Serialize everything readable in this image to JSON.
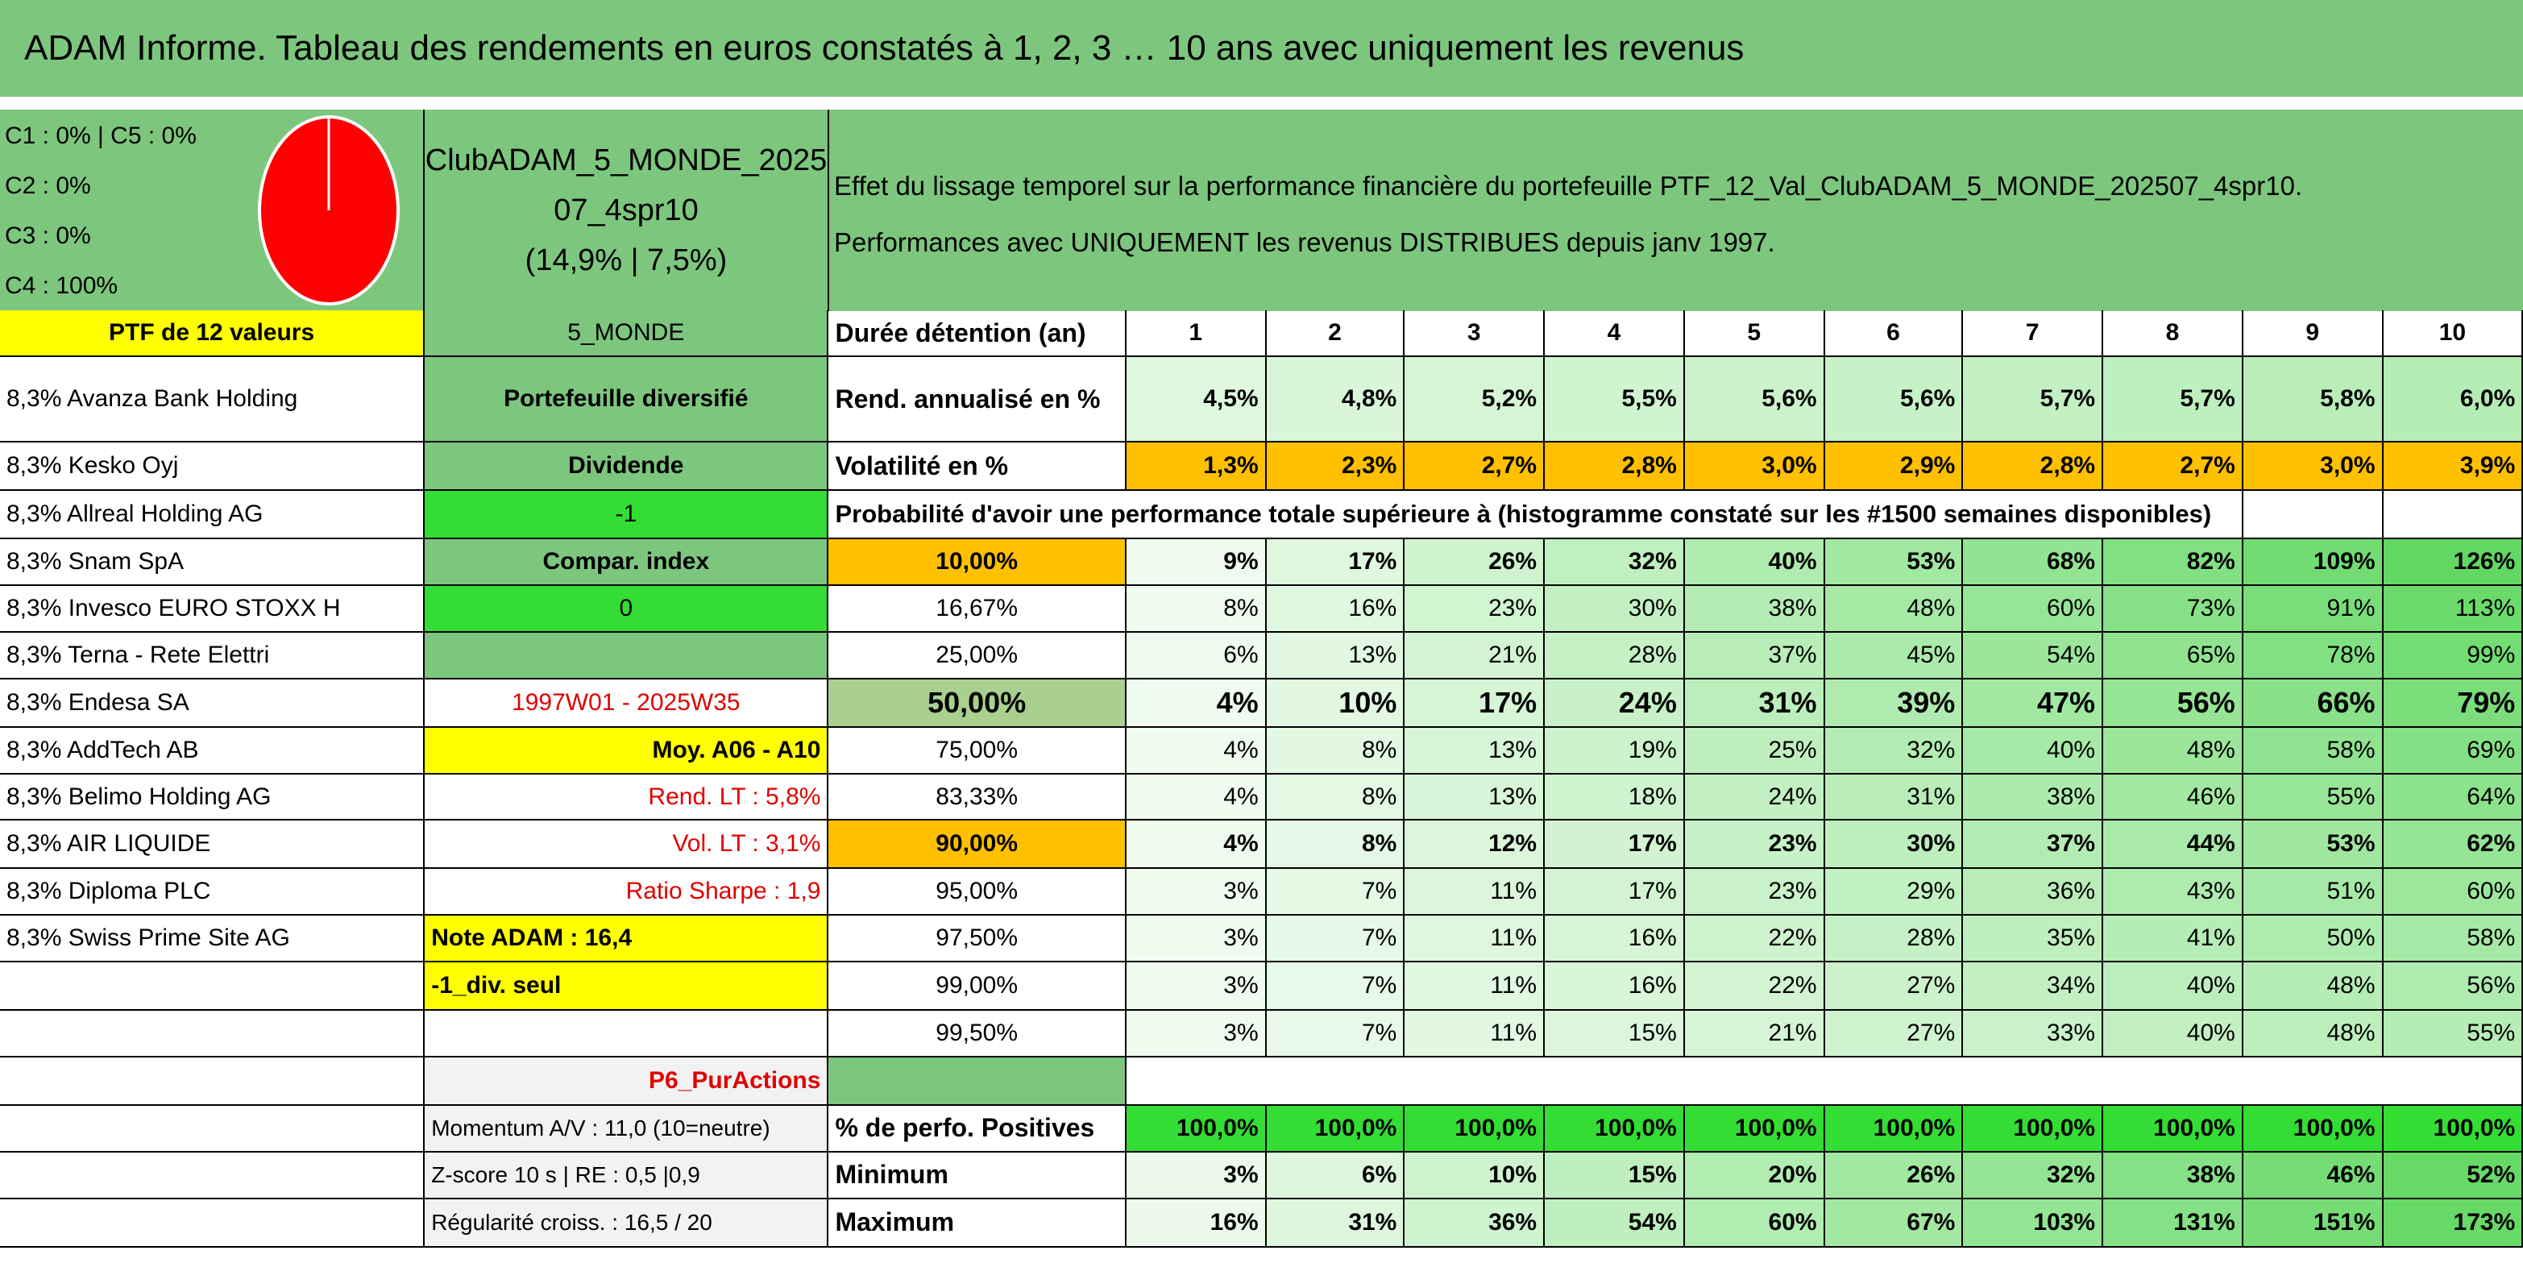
{
  "title": "ADAM Informe. Tableau des rendements en euros constatés à 1, 2, 3 … 10 ans avec uniquement les revenus",
  "allocation": [
    "C1 : 0% | C5 : 0%",
    "C2 : 0%",
    "C3 : 0%",
    "C4 : 100%"
  ],
  "portfolio": {
    "name_line1": "ClubADAM_5_MONDE_2025",
    "name_line2": "07_4spr10",
    "stats": "(14,9% | 7,5%)"
  },
  "description": [
    "Effet du lissage temporel sur la performance financière du portefeuille PTF_12_Val_ClubADAM_5_MONDE_202507_4spr10.",
    "Performances avec UNIQUEMENT les revenus DISTRIBUES depuis janv 1997."
  ],
  "rows": [
    {
      "left": "PTF de 12 valeurs",
      "middle": "5_MONDE",
      "label": "Durée détention (an)",
      "values": [
        "1",
        "2",
        "3",
        "4",
        "5",
        "6",
        "7",
        "8",
        "9",
        "10"
      ]
    },
    {
      "left": "8,3% Avanza Bank Holding",
      "middle": "Portefeuille diversifié",
      "label": "Rend. annualisé en %",
      "values": [
        "4,5%",
        "4,8%",
        "5,2%",
        "5,5%",
        "5,6%",
        "5,6%",
        "5,7%",
        "5,7%",
        "5,8%",
        "6,0%"
      ]
    },
    {
      "left": "8,3% Kesko Oyj",
      "middle": "Dividende",
      "label": "Volatilité en %",
      "values": [
        "1,3%",
        "2,3%",
        "2,7%",
        "2,8%",
        "3,0%",
        "2,9%",
        "2,8%",
        "2,7%",
        "3,0%",
        "3,9%"
      ]
    },
    {
      "left": "8,3% Allreal Holding AG",
      "middle": "-1",
      "label": "Probabilité d'avoir une performance totale supérieure à (histogramme constaté sur les #1500 semaines disponibles)",
      "values": null
    },
    {
      "left": "8,3% Snam SpA",
      "middle": "Compar. index",
      "label": "10,00%",
      "values": [
        "9%",
        "17%",
        "26%",
        "32%",
        "40%",
        "53%",
        "68%",
        "82%",
        "109%",
        "126%"
      ]
    },
    {
      "left": "8,3% Invesco EURO STOXX H",
      "middle": "0",
      "label": "16,67%",
      "values": [
        "8%",
        "16%",
        "23%",
        "30%",
        "38%",
        "48%",
        "60%",
        "73%",
        "91%",
        "113%"
      ]
    },
    {
      "left": "8,3% Terna - Rete Elettri",
      "middle": null,
      "label": "25,00%",
      "values": [
        "6%",
        "13%",
        "21%",
        "28%",
        "37%",
        "45%",
        "54%",
        "65%",
        "78%",
        "99%"
      ]
    },
    {
      "left": "8,3% Endesa SA",
      "middle": "1997W01 - 2025W35",
      "label": "50,00%",
      "values": [
        "4%",
        "10%",
        "17%",
        "24%",
        "31%",
        "39%",
        "47%",
        "56%",
        "66%",
        "79%"
      ]
    },
    {
      "left": "8,3% AddTech AB",
      "middle": "Moy. A06 - A10",
      "label": "75,00%",
      "values": [
        "4%",
        "8%",
        "13%",
        "19%",
        "25%",
        "32%",
        "40%",
        "48%",
        "58%",
        "69%"
      ]
    },
    {
      "left": "8,3% Belimo Holding AG",
      "middle": "Rend. LT : 5,8%",
      "label": "83,33%",
      "values": [
        "4%",
        "8%",
        "13%",
        "18%",
        "24%",
        "31%",
        "38%",
        "46%",
        "55%",
        "64%"
      ]
    },
    {
      "left": "8,3% AIR LIQUIDE",
      "middle": "Vol. LT : 3,1%",
      "label": "90,00%",
      "values": [
        "4%",
        "8%",
        "12%",
        "17%",
        "23%",
        "30%",
        "37%",
        "44%",
        "53%",
        "62%"
      ]
    },
    {
      "left": "8,3% Diploma PLC",
      "middle": "Ratio Sharpe : 1,9",
      "label": "95,00%",
      "values": [
        "3%",
        "7%",
        "11%",
        "17%",
        "23%",
        "29%",
        "36%",
        "43%",
        "51%",
        "60%"
      ]
    },
    {
      "left": "8,3% Swiss Prime Site AG",
      "middle": "Note ADAM : 16,4",
      "label": "97,50%",
      "values": [
        "3%",
        "7%",
        "11%",
        "16%",
        "22%",
        "28%",
        "35%",
        "41%",
        "50%",
        "58%"
      ]
    },
    {
      "left": null,
      "middle": "-1_div. seul",
      "label": "99,00%",
      "values": [
        "3%",
        "7%",
        "11%",
        "16%",
        "22%",
        "27%",
        "34%",
        "40%",
        "48%",
        "56%"
      ]
    },
    {
      "left": null,
      "middle": null,
      "label": "99,50%",
      "values": [
        "3%",
        "7%",
        "11%",
        "15%",
        "21%",
        "27%",
        "33%",
        "40%",
        "48%",
        "55%"
      ]
    },
    {
      "left": null,
      "middle": "P6_PurActions",
      "label": null,
      "values": null
    },
    {
      "left": null,
      "middle": "Momentum A/V : 11,0 (10=neutre)",
      "label": "% de perfo. Positives",
      "values": [
        "100,0%",
        "100,0%",
        "100,0%",
        "100,0%",
        "100,0%",
        "100,0%",
        "100,0%",
        "100,0%",
        "100,0%",
        "100,0%"
      ]
    },
    {
      "left": null,
      "middle": "Z-score 10 s | RE : 0,5 |0,9",
      "label": "Minimum",
      "values": [
        "3%",
        "6%",
        "10%",
        "15%",
        "20%",
        "26%",
        "32%",
        "38%",
        "46%",
        "52%"
      ]
    },
    {
      "left": null,
      "middle": "Régularité croiss. : 16,5 / 20",
      "label": "Maximum",
      "values": [
        "16%",
        "31%",
        "36%",
        "54%",
        "60%",
        "67%",
        "103%",
        "131%",
        "151%",
        "173%"
      ]
    }
  ]
}
